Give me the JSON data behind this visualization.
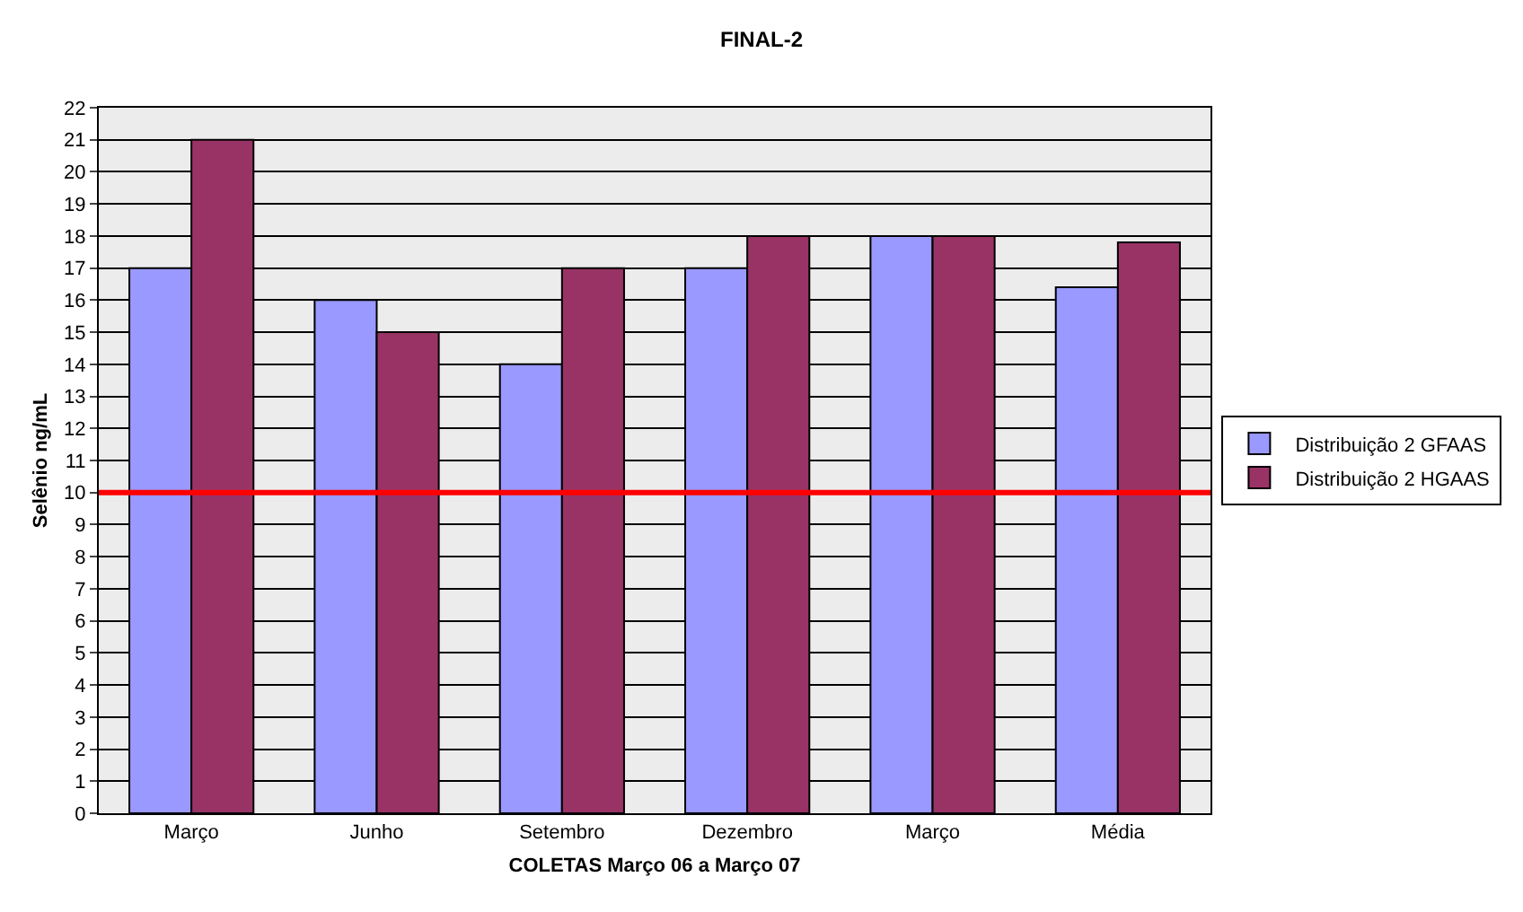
{
  "chart_data": {
    "type": "bar",
    "title": "FINAL-2",
    "xlabel": "COLETAS Março 06 a Março 07",
    "ylabel": "Selênio ng/mL",
    "categories": [
      "Março",
      "Junho",
      "Setembro",
      "Dezembro",
      "Março",
      "Média"
    ],
    "series": [
      {
        "name": "Distribuição 2 GFAAS",
        "color": "#9999ff",
        "values": [
          17,
          16,
          14,
          17,
          18,
          16.4
        ]
      },
      {
        "name": "Distribuição 2 HGAAS",
        "color": "#993366",
        "values": [
          21,
          15,
          17,
          18,
          18,
          17.8
        ]
      }
    ],
    "ylim": [
      0,
      22
    ],
    "yticks": [
      0,
      1,
      2,
      3,
      4,
      5,
      6,
      7,
      8,
      9,
      10,
      11,
      12,
      13,
      14,
      15,
      16,
      17,
      18,
      19,
      20,
      21,
      22
    ],
    "grid": "y",
    "legend": "right",
    "ref_lines": [
      {
        "axis": "y",
        "value": 10,
        "color": "#ff0000"
      }
    ]
  }
}
